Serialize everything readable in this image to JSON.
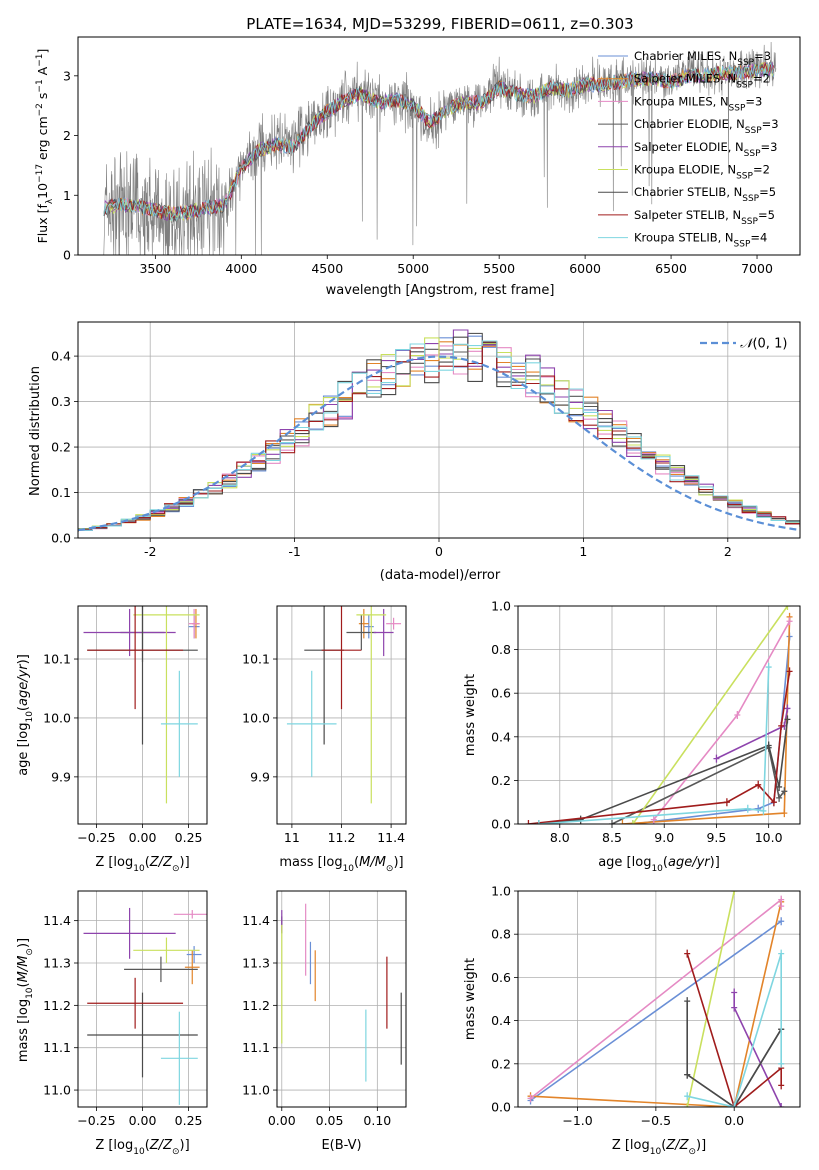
{
  "figure_title": "PLATE=1634, MJD=53299, FIBERID=0611, z=0.303",
  "colors": {
    "series": [
      "#6a8fd6",
      "#e2842a",
      "#e58ac4",
      "#585858",
      "#8e44ad",
      "#c9e05e",
      "#4a4a4a",
      "#a01c1c",
      "#7fd6e0"
    ],
    "spectrum": "#7f7f7f",
    "normal": "#5b8fd6",
    "grid": "#b0b0b0"
  },
  "legend": [
    "Chabrier MILES, N_SSP=3",
    "Salpeter MILES, N_SSP=2",
    "Kroupa MILES, N_SSP=3",
    "Chabrier ELODIE, N_SSP=3",
    "Salpeter ELODIE, N_SSP=3",
    "Kroupa ELODIE, N_SSP=2",
    "Chabrier STELIB, N_SSP=5",
    "Salpeter STELIB, N_SSP=5",
    "Kroupa STELIB, N_SSP=4"
  ],
  "chart_data": [
    {
      "id": "spectrum",
      "type": "line",
      "title": "PLATE=1634, MJD=53299, FIBERID=0611, z=0.303",
      "xlabel": "wavelength [Angstrom, rest frame]",
      "ylabel": "Flux [f_λ 10^-17 erg cm^-2 s^-1 A^-1]",
      "xlim": [
        3050,
        7250
      ],
      "ylim": [
        0,
        3.65
      ],
      "xticks": [
        3500,
        4000,
        4500,
        5000,
        5500,
        6000,
        6500,
        7000
      ],
      "yticks": [
        0,
        1,
        2,
        3
      ],
      "observed": {
        "x": [
          3200,
          3300,
          3400,
          3500,
          3600,
          3700,
          3800,
          3900,
          4000,
          4100,
          4200,
          4300,
          4400,
          4500,
          4600,
          4700,
          4800,
          4900,
          5000,
          5100,
          5200,
          5300,
          5400,
          5500,
          5600,
          5700,
          5800,
          5900,
          6000,
          6100,
          6200,
          6300,
          6400,
          6500,
          6600,
          6700,
          6800,
          6900,
          7000,
          7100
        ],
        "y": [
          0.75,
          0.85,
          0.8,
          0.7,
          0.6,
          0.7,
          0.9,
          0.75,
          1.4,
          1.8,
          1.9,
          1.85,
          2.2,
          2.4,
          2.6,
          2.75,
          2.55,
          2.6,
          2.5,
          2.1,
          2.5,
          2.6,
          2.55,
          2.9,
          2.7,
          2.6,
          2.8,
          2.75,
          2.9,
          2.85,
          2.9,
          2.95,
          3.0,
          2.9,
          3.1,
          3.0,
          3.05,
          3.1,
          3.15,
          3.2
        ]
      },
      "model": {
        "x": [
          3200,
          3300,
          3400,
          3500,
          3600,
          3700,
          3800,
          3900,
          4000,
          4100,
          4200,
          4300,
          4400,
          4500,
          4600,
          4700,
          4800,
          4900,
          5000,
          5100,
          5200,
          5300,
          5400,
          5500,
          5600,
          5700,
          5800,
          5900,
          6000,
          6100,
          6200,
          6300,
          6400,
          6500,
          6600,
          6700,
          6800,
          6900,
          7000,
          7100
        ],
        "y": [
          0.78,
          0.85,
          0.82,
          0.75,
          0.68,
          0.72,
          0.8,
          0.82,
          1.45,
          1.75,
          1.85,
          1.8,
          2.15,
          2.4,
          2.6,
          2.7,
          2.55,
          2.6,
          2.5,
          2.2,
          2.45,
          2.55,
          2.55,
          2.8,
          2.7,
          2.65,
          2.8,
          2.75,
          2.85,
          2.85,
          2.9,
          2.95,
          2.95,
          2.9,
          3.0,
          3.0,
          3.05,
          3.05,
          3.1,
          3.1
        ]
      }
    },
    {
      "id": "residuals",
      "type": "line",
      "xlabel": "(data-model)/error",
      "ylabel": "Normed distribution",
      "legend": "N(0, 1)",
      "xlim": [
        -2.5,
        2.5
      ],
      "ylim": [
        0,
        0.475
      ],
      "xticks": [
        -2,
        -1,
        0,
        1,
        2
      ],
      "yticks": [
        0.0,
        0.1,
        0.2,
        0.3,
        0.4
      ],
      "bin_width": 0.1
    },
    {
      "id": "age_vs_Z",
      "type": "scatter",
      "xlabel": "Z [log10(Z/Z⊙)]",
      "ylabel": "age [log10(age/yr)]",
      "xlim": [
        -0.35,
        0.35
      ],
      "ylim": [
        9.82,
        10.19
      ],
      "xticks": [
        -0.25,
        0.0,
        0.25
      ],
      "xticklabels": [
        "−0.25",
        "0.00",
        "0.25"
      ],
      "yticks": [
        9.9,
        10.0,
        10.1
      ],
      "points": [
        {
          "s": 0,
          "x": 0.28,
          "xe": 0.03,
          "y": 10.155,
          "ye": 0.02
        },
        {
          "s": 1,
          "x": 0.29,
          "xe": 0.02,
          "y": 10.16,
          "ye": 0.025
        },
        {
          "s": 2,
          "x": 0.28,
          "xe": 0.03,
          "y": 10.16,
          "ye": 0.025
        },
        {
          "s": 3,
          "x": 0.0,
          "xe": 0.12,
          "y": 10.145,
          "ye": 0.05
        },
        {
          "s": 4,
          "x": -0.07,
          "xe": 0.25,
          "y": 10.145,
          "ye": 0.04
        },
        {
          "s": 5,
          "x": 0.13,
          "xe": 0.18,
          "y": 10.175,
          "ye": 0.32
        },
        {
          "s": 6,
          "x": 0.0,
          "xe": 0.3,
          "y": 10.115,
          "ye": 0.16
        },
        {
          "s": 7,
          "x": -0.04,
          "xe": 0.26,
          "y": 10.115,
          "ye": 0.1
        },
        {
          "s": 8,
          "x": 0.2,
          "xe": 0.1,
          "y": 9.99,
          "ye": 0.09
        }
      ]
    },
    {
      "id": "age_vs_mass",
      "type": "scatter",
      "xlabel": "mass [log10(M/M⊙)]",
      "ylabel": "",
      "xlim": [
        10.94,
        11.46
      ],
      "ylim": [
        9.82,
        10.19
      ],
      "xticks": [
        11.0,
        11.2,
        11.4
      ],
      "yticks": [
        9.9,
        10.0,
        10.1
      ],
      "points": [
        {
          "s": 0,
          "x": 11.31,
          "xe": 0.02,
          "y": 10.155,
          "ye": 0.02
        },
        {
          "s": 1,
          "x": 11.29,
          "xe": 0.02,
          "y": 10.16,
          "ye": 0.025
        },
        {
          "s": 2,
          "x": 11.41,
          "xe": 0.03,
          "y": 10.16,
          "ye": 0.01
        },
        {
          "s": 3,
          "x": 11.28,
          "xe": 0.06,
          "y": 10.145,
          "ye": 0.03
        },
        {
          "s": 4,
          "x": 11.37,
          "xe": 0.04,
          "y": 10.145,
          "ye": 0.04
        },
        {
          "s": 5,
          "x": 11.32,
          "xe": 0.06,
          "y": 10.175,
          "ye": 0.32
        },
        {
          "s": 6,
          "x": 11.13,
          "xe": 0.08,
          "y": 10.115,
          "ye": 0.16
        },
        {
          "s": 7,
          "x": 11.2,
          "xe": 0.08,
          "y": 10.115,
          "ye": 0.1
        },
        {
          "s": 8,
          "x": 11.08,
          "xe": 0.1,
          "y": 9.99,
          "ye": 0.09
        }
      ]
    },
    {
      "id": "weight_vs_age",
      "type": "line",
      "xlabel": "age [log10(age/yr)]",
      "ylabel": "mass weight",
      "xlim": [
        7.6,
        10.3
      ],
      "ylim": [
        0,
        1
      ],
      "xticks": [
        8.0,
        8.5,
        9.0,
        9.5,
        10.0
      ],
      "yticks": [
        0.0,
        0.2,
        0.4,
        0.6,
        0.8,
        1.0
      ],
      "series": [
        {
          "s": 0,
          "x": [
            8.7,
            9.9,
            10.05,
            10.2
          ],
          "y": [
            0.0,
            0.07,
            0.1,
            0.86
          ]
        },
        {
          "s": 1,
          "x": [
            8.6,
            10.15,
            10.2
          ],
          "y": [
            0.0,
            0.05,
            0.95
          ]
        },
        {
          "s": 2,
          "x": [
            8.9,
            9.7,
            10.2
          ],
          "y": [
            0.02,
            0.5,
            0.93
          ]
        },
        {
          "s": 3,
          "x": [
            8.5,
            10.0,
            10.1,
            10.15
          ],
          "y": [
            0.0,
            0.35,
            0.12,
            0.15
          ]
        },
        {
          "s": 4,
          "x": [
            9.5,
            10.15,
            10.18
          ],
          "y": [
            0.3,
            0.45,
            0.53
          ]
        },
        {
          "s": 5,
          "x": [
            8.7,
            10.18
          ],
          "y": [
            0.0,
            1.0
          ]
        },
        {
          "s": 6,
          "x": [
            7.8,
            8.2,
            10.0,
            10.1,
            10.18
          ],
          "y": [
            0.0,
            0.02,
            0.36,
            0.17,
            0.48
          ]
        },
        {
          "s": 7,
          "x": [
            7.7,
            9.6,
            9.9,
            10.05,
            10.12,
            10.2
          ],
          "y": [
            0.0,
            0.1,
            0.18,
            0.1,
            0.45,
            0.7
          ]
        },
        {
          "s": 8,
          "x": [
            7.8,
            9.8,
            9.95,
            10.0
          ],
          "y": [
            0.0,
            0.07,
            0.06,
            0.72
          ]
        }
      ]
    },
    {
      "id": "mass_vs_Z",
      "type": "scatter",
      "xlabel": "Z [log10(Z/Z⊙)]",
      "ylabel": "mass [log10(M/M⊙)]",
      "xlim": [
        -0.35,
        0.35
      ],
      "ylim": [
        10.96,
        11.47
      ],
      "xticks": [
        -0.25,
        0.0,
        0.25
      ],
      "xticklabels": [
        "−0.25",
        "0.00",
        "0.25"
      ],
      "yticks": [
        11.0,
        11.1,
        11.2,
        11.3,
        11.4
      ],
      "points": [
        {
          "s": 0,
          "x": 0.28,
          "xe": 0.04,
          "y": 11.32,
          "ye": 0.02
        },
        {
          "s": 1,
          "x": 0.27,
          "xe": 0.04,
          "y": 11.29,
          "ye": 0.04
        },
        {
          "s": 2,
          "x": 0.27,
          "xe": 0.1,
          "y": 11.415,
          "ye": 0.01
        },
        {
          "s": 3,
          "x": 0.1,
          "xe": 0.2,
          "y": 11.285,
          "ye": 0.03
        },
        {
          "s": 4,
          "x": -0.07,
          "xe": 0.25,
          "y": 11.37,
          "ye": 0.06
        },
        {
          "s": 5,
          "x": 0.13,
          "xe": 0.18,
          "y": 11.33,
          "ye": 0.03
        },
        {
          "s": 6,
          "x": 0.0,
          "xe": 0.3,
          "y": 11.13,
          "ye": 0.1
        },
        {
          "s": 7,
          "x": -0.04,
          "xe": 0.26,
          "y": 11.205,
          "ye": 0.06
        },
        {
          "s": 8,
          "x": 0.2,
          "xe": 0.1,
          "y": 11.075,
          "ye": 0.11
        }
      ]
    },
    {
      "id": "mass_vs_ebv",
      "type": "scatter",
      "xlabel": "E(B-V)",
      "ylabel": "",
      "xlim": [
        -0.005,
        0.13
      ],
      "ylim": [
        10.96,
        11.47
      ],
      "xticks": [
        0.0,
        0.05,
        0.1
      ],
      "xticklabels": [
        "0.00",
        "0.05",
        "0.10"
      ],
      "yticks": [
        11.0,
        11.1,
        11.2,
        11.3,
        11.4
      ],
      "points": [
        {
          "s": 0,
          "x": 0.03,
          "y": 11.3,
          "ye": 0.05
        },
        {
          "s": 1,
          "x": 0.035,
          "y": 11.27,
          "ye": 0.06
        },
        {
          "s": 2,
          "x": 0.025,
          "y": 11.355,
          "ye": 0.085
        },
        {
          "s": 3,
          "x": 0.0,
          "y": 11.39,
          "ye": 0.02
        },
        {
          "s": 4,
          "x": 0.0,
          "y": 11.4,
          "ye": 0.025
        },
        {
          "s": 5,
          "x": 0.0,
          "y": 11.25,
          "ye": 0.14
        },
        {
          "s": 6,
          "x": 0.125,
          "y": 11.145,
          "ye": 0.085
        },
        {
          "s": 7,
          "x": 0.11,
          "y": 11.23,
          "ye": 0.085
        },
        {
          "s": 8,
          "x": 0.088,
          "y": 11.105,
          "ye": 0.085
        }
      ]
    },
    {
      "id": "weight_vs_Z",
      "type": "line",
      "xlabel": "Z [log10(Z/Z⊙)]",
      "ylabel": "mass weight",
      "xlim": [
        -1.38,
        0.42
      ],
      "ylim": [
        0,
        1
      ],
      "xticks": [
        -1.0,
        -0.5,
        0.0
      ],
      "xticklabels": [
        "−1.0",
        "−0.5",
        "0.0"
      ],
      "yticks": [
        0.0,
        0.2,
        0.4,
        0.6,
        0.8,
        1.0
      ],
      "series": [
        {
          "s": 0,
          "x": [
            -1.3,
            0.3
          ],
          "y": [
            0.03,
            0.86
          ]
        },
        {
          "s": 1,
          "x": [
            -1.3,
            0.0,
            0.3
          ],
          "y": [
            0.05,
            0.0,
            0.95
          ]
        },
        {
          "s": 2,
          "x": [
            -1.3,
            0.3,
            0.3
          ],
          "y": [
            0.04,
            0.96,
            0.93
          ]
        },
        {
          "s": 3,
          "x": [
            -0.3,
            0.0,
            0.3
          ],
          "y": [
            0.15,
            0.0,
            0.36
          ]
        },
        {
          "s": 4,
          "x": [
            0.0,
            0.0,
            0.3
          ],
          "y": [
            0.53,
            0.46,
            0.0
          ]
        },
        {
          "s": 5,
          "x": [
            -0.3,
            0.0
          ],
          "y": [
            0.0,
            1.0
          ]
        },
        {
          "s": 6,
          "x": [
            -0.3,
            -0.3,
            0.0,
            0.3
          ],
          "y": [
            0.49,
            0.15,
            0.0,
            0.36
          ]
        },
        {
          "s": 7,
          "x": [
            -0.3,
            0.0,
            0.3,
            0.3
          ],
          "y": [
            0.71,
            0.0,
            0.18,
            0.1
          ]
        },
        {
          "s": 8,
          "x": [
            -0.3,
            0.0,
            0.3,
            0.3
          ],
          "y": [
            0.05,
            0.0,
            0.71,
            0.2
          ]
        }
      ]
    }
  ]
}
